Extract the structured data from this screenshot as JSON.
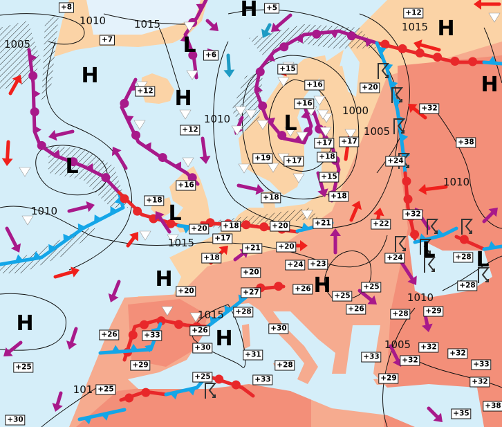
{
  "map": {
    "temperatures": [
      "+8",
      "+5",
      "+12",
      "+7",
      "+6",
      "+15",
      "+16",
      "+20",
      "+12",
      "+16",
      "+32",
      "+12",
      "+38",
      "+17",
      "+17",
      "+19",
      "+17",
      "+18",
      "+24",
      "+16",
      "+15",
      "+18",
      "+18",
      "+18",
      "+32",
      "+18",
      "+20",
      "+21",
      "+22",
      "+20",
      "+17",
      "+28",
      "+21",
      "+20",
      "+18",
      "+24",
      "+24",
      "+23",
      "+28",
      "+20",
      "+25",
      "+20",
      "+27",
      "+26",
      "+25",
      "+26",
      "+28",
      "+29",
      "+28",
      "+26",
      "+33",
      "+26",
      "+30",
      "+30",
      "+31",
      "+32",
      "+32",
      "+32",
      "+33",
      "+33",
      "+28",
      "+29",
      "+25",
      "+25",
      "+25",
      "+33",
      "+29",
      "+32",
      "+35",
      "+38",
      "+30"
    ],
    "pressure_centers": [
      "H",
      "H",
      "L",
      "H",
      "H",
      "H",
      "L",
      "L",
      "L",
      "L",
      "L",
      "H",
      "H",
      "H",
      "H"
    ],
    "isobar_labels": [
      "1010",
      "1015",
      "1005",
      "1015",
      "1010",
      "1000",
      "1005",
      "1010",
      "1010",
      "1015",
      "1010",
      "1015",
      "1005",
      "101"
    ]
  },
  "colors": {
    "sea": "#d5eef9",
    "land_mild": "#fbd3a6",
    "land_warm": "#f6ab8f",
    "land_hot": "#f38f79",
    "cold_front": "#14a6e8",
    "warm_front": "#e8282a",
    "occluded_front": "#a8198a",
    "warm_arrow": "#f0201c",
    "cool_arrow": "#1f9bc4"
  },
  "symbols": {
    "front_types": [
      "cold-front",
      "warm-front",
      "occluded-front"
    ],
    "weather": [
      "shower-triangle",
      "thunderstorm-symbol",
      "precipitation-hatching"
    ]
  }
}
